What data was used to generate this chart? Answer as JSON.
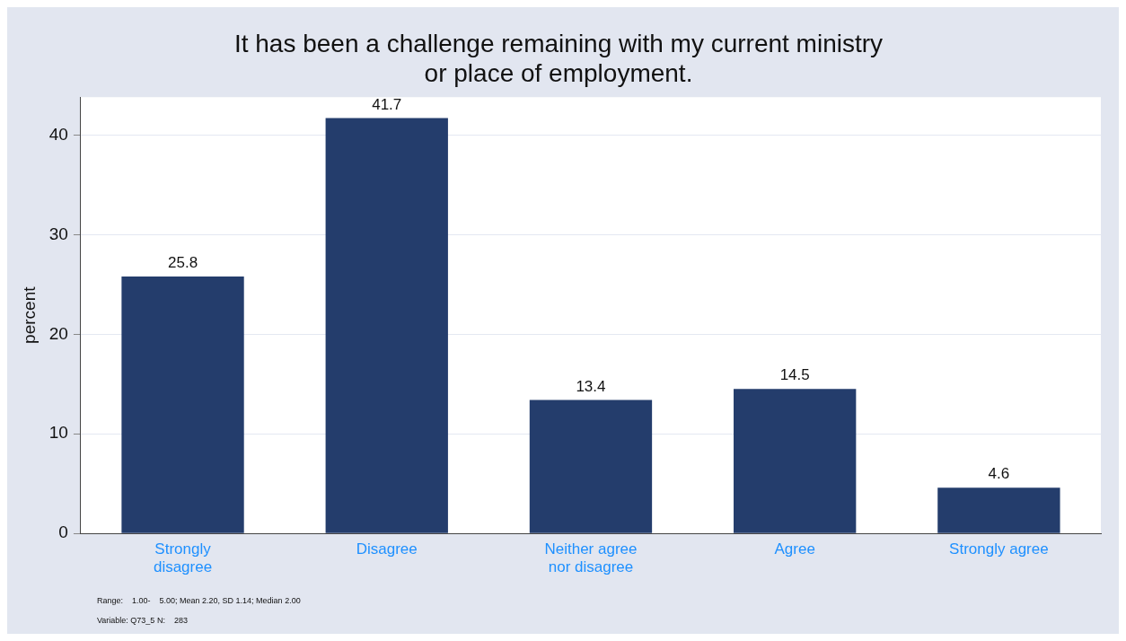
{
  "chart_data": {
    "type": "bar",
    "title": "It has been a challenge remaining with my current ministry or place of employment.",
    "ylabel": "percent",
    "categories": [
      "Strongly disagree",
      "Disagree",
      "Neither agree nor disagree",
      "Agree",
      "Strongly agree"
    ],
    "values": [
      25.8,
      41.7,
      13.4,
      14.5,
      4.6
    ],
    "color": "#243d6c",
    "ylim": [
      0,
      43.8
    ],
    "yticks": [
      0,
      10,
      20,
      30,
      40
    ],
    "grid": "y",
    "data_labels": true,
    "legend": false,
    "annotations": [
      "Range:    1.00-    5.00; Mean 2.20, SD 1.14; Median 2.00",
      "Variable: Q73_5 N:    283"
    ]
  }
}
